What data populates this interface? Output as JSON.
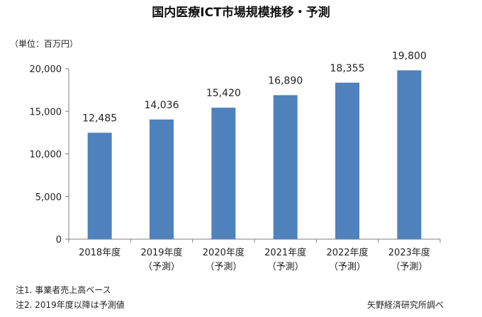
{
  "chart_data": {
    "type": "bar",
    "title": "国内医療ICT市場規模推移・予測",
    "unit_label": "（単位：百万円）",
    "categories": [
      [
        "2018年度"
      ],
      [
        "2019年度",
        "（予測）"
      ],
      [
        "2020年度",
        "（予測）"
      ],
      [
        "2021年度",
        "（予測）"
      ],
      [
        "2022年度",
        "（予測）"
      ],
      [
        "2023年度",
        "（予測）"
      ]
    ],
    "values": [
      12485,
      14036,
      15420,
      16890,
      18355,
      19800
    ],
    "value_labels": [
      "12,485",
      "14,036",
      "15,420",
      "16,890",
      "18,355",
      "19,800"
    ],
    "ylim": [
      0,
      20000
    ],
    "yticks": [
      0,
      5000,
      10000,
      15000,
      20000
    ],
    "ytick_labels": [
      "0",
      "5,000",
      "10,000",
      "15,000",
      "20,000"
    ],
    "bar_color": "#4f81bd",
    "grid": false,
    "legend": "none"
  },
  "notes": {
    "note1": "注1. 事業者売上高ベース",
    "note2": "注2. 2019年度以降は予測値",
    "source": "矢野経済研究所調べ"
  }
}
